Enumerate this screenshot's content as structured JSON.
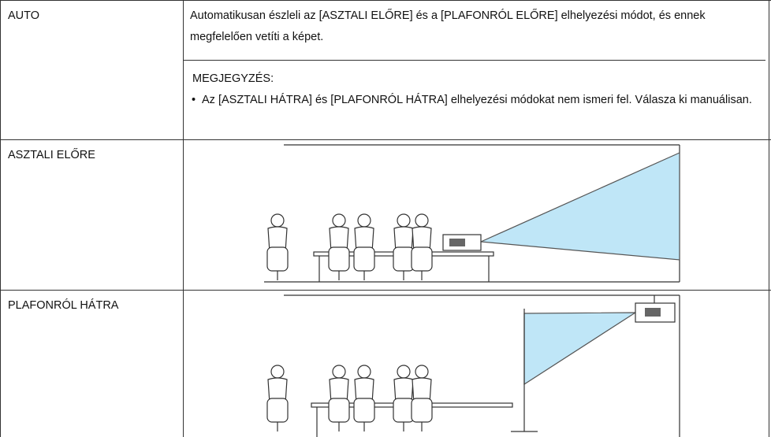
{
  "table": {
    "rows": [
      {
        "label": "AUTO",
        "description": "Automatikusan észleli az [ASZTALI ELŐRE] és a [PLAFONRÓL ELŐRE] elhelyezési módot, és ennek megfelelően vetíti a képet.",
        "note": {
          "title": "MEGJEGYZÉS:",
          "items": [
            "Az [ASZTALI HÁTRA] és [PLAFONRÓL HÁTRA] elhelyezési módokat nem ismeri fel. Válasza ki manuálisan."
          ]
        }
      },
      {
        "label": "ASZTALI ELŐRE"
      },
      {
        "label": "PLAFONRÓL HÁTRA"
      }
    ]
  }
}
